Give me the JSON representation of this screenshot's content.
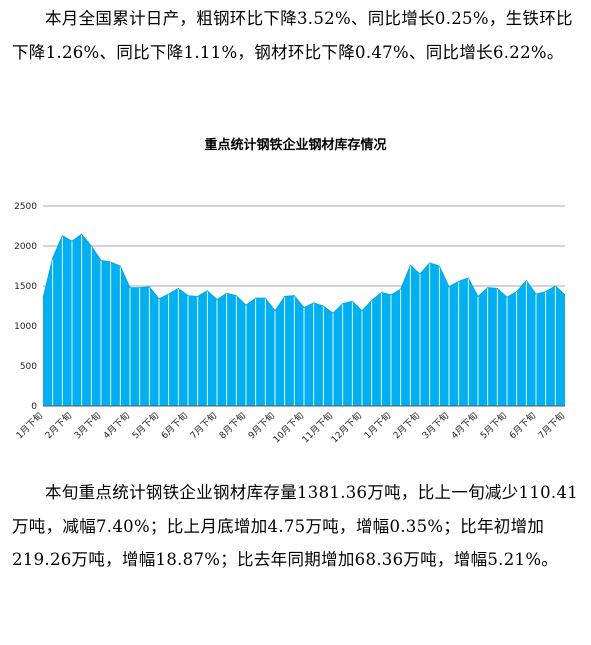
{
  "intro_paragraph": "本月全国累计日产，粗钢环比下降3.52%、同比增长0.25%，生铁环比下降1.26%、同比下降1.11%，钢材环比下降0.47%、同比增长6.22%。",
  "chart_data": {
    "type": "area",
    "title": "重点统计钢铁企业钢材库存情况",
    "xlabel": "",
    "ylabel": "",
    "ylim": [
      0,
      2500
    ],
    "yticks": [
      0,
      500,
      1000,
      1500,
      2000,
      2500
    ],
    "grid": true,
    "legend": "none",
    "x_labels": [
      "1月下旬",
      "2月下旬",
      "3月下旬",
      "4月下旬",
      "5月下旬",
      "6月下旬",
      "7月下旬",
      "8月下旬",
      "9月下旬",
      "10月下旬",
      "11月下旬",
      "12月下旬",
      "1月下旬",
      "2月下旬",
      "3月下旬",
      "4月下旬",
      "5月下旬",
      "6月下旬",
      "7月下旬"
    ],
    "fill_color": "#00b0f0",
    "line_color": "#ffffff",
    "values": [
      1350,
      1850,
      2130,
      2060,
      2150,
      2000,
      1820,
      1800,
      1750,
      1480,
      1480,
      1490,
      1340,
      1400,
      1470,
      1380,
      1370,
      1440,
      1330,
      1410,
      1380,
      1260,
      1350,
      1350,
      1190,
      1370,
      1380,
      1230,
      1290,
      1250,
      1160,
      1280,
      1310,
      1190,
      1320,
      1420,
      1390,
      1460,
      1760,
      1650,
      1790,
      1750,
      1490,
      1560,
      1600,
      1370,
      1480,
      1470,
      1360,
      1430,
      1570,
      1400,
      1430,
      1500,
      1390
    ]
  },
  "body_paragraph": "本旬重点统计钢铁企业钢材库存量1381.36万吨，比上一旬减少110.41万吨，减幅7.40%；比上月底增加4.75万吨，增幅0.35%；比年初增加219.26万吨，增幅18.87%；比去年同期增加68.36万吨，增幅5.21%。"
}
